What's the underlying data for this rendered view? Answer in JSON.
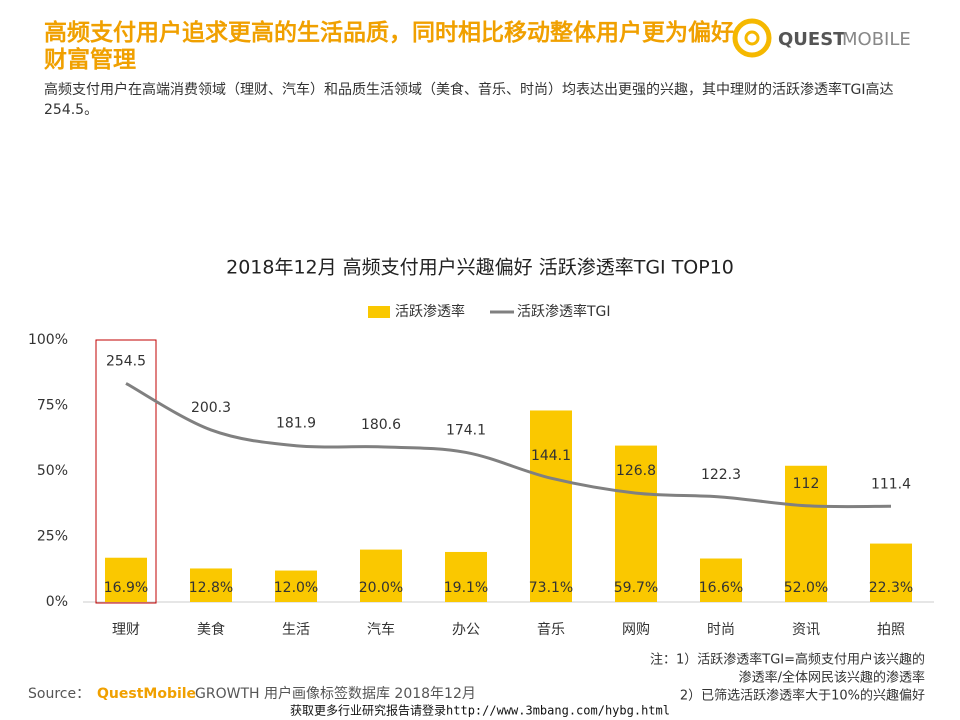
{
  "header": {
    "title": "高频支付用户追求更高的生活品质，同时相比移动整体用户更为偏好财富管理",
    "subtitle": "高频支付用户在高端消费领域（理财、汽车）和品质生活领域（美食、音乐、时尚）均表达出更强的兴趣，其中理财的活跃渗透率TGI高达254.5。",
    "brand_a": "QUEST",
    "brand_b": "MOBILE"
  },
  "chart_data": {
    "type": "bar_line",
    "title": "2018年12月 高频支付用户兴趣偏好 活跃渗透率TGI TOP10",
    "categories": [
      "理财",
      "美食",
      "生活",
      "汽车",
      "办公",
      "音乐",
      "网购",
      "时尚",
      "资讯",
      "拍照"
    ],
    "series": [
      {
        "name": "活跃渗透率",
        "type": "bar",
        "color": "#fac800",
        "values": [
          16.9,
          12.8,
          12.0,
          20.0,
          19.1,
          73.1,
          59.7,
          16.6,
          52.0,
          22.3
        ],
        "value_labels": [
          "16.9%",
          "12.8%",
          "12.0%",
          "20.0%",
          "19.1%",
          "73.1%",
          "59.7%",
          "16.6%",
          "52.0%",
          "22.3%"
        ]
      },
      {
        "name": "活跃渗透率TGI",
        "type": "line",
        "color": "#808080",
        "axis": "y2",
        "values": [
          254.5,
          200.3,
          181.9,
          180.6,
          174.1,
          144.1,
          126.8,
          122.3,
          112.0,
          111.4
        ]
      }
    ],
    "ylim": [
      0,
      100
    ],
    "yticks": [
      {
        "value": 0,
        "label": "0%"
      },
      {
        "value": 25,
        "label": "25%"
      },
      {
        "value": 50,
        "label": "50%"
      },
      {
        "value": 75,
        "label": "75%"
      },
      {
        "value": 100,
        "label": "100%"
      }
    ],
    "y2lim": [
      0,
      305
    ],
    "grid": false,
    "legend": "top"
  },
  "notes": [
    "注：1）活跃渗透率TGI=高频支付用户该兴趣的",
    "渗透率/全体网民该兴趣的渗透率",
    "2）已筛选活跃渗透率大于10%的兴趣偏好"
  ],
  "source": {
    "label": "Source：",
    "brand": "QuestMobile",
    "text": "GROWTH 用户画像标签数据库 2018年12月"
  },
  "footer": "获取更多行业研究报告请登录http://www.3mbang.com/hybg.html"
}
